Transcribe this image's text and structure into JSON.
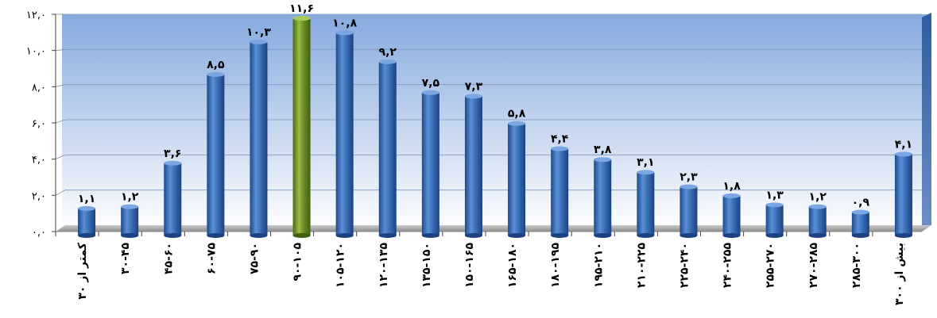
{
  "chart_data": {
    "type": "bar",
    "title": "",
    "xlabel": "",
    "ylabel": "",
    "ylim": [
      0,
      12
    ],
    "yticks": [
      0,
      2,
      4,
      6,
      8,
      10,
      12
    ],
    "ytick_labels": [
      "۰,۰",
      "۲,۰",
      "۴,۰",
      "۶,۰",
      "۸,۰",
      "۱۰,۰",
      "۱۲,۰"
    ],
    "grid": true,
    "legend": "none",
    "categories": [
      "کمتر از ۳۰",
      "۳۰-۴۵",
      "۴۵-۶۰",
      "۶۰-۷۵",
      "۷۵-۹۰",
      "۹۰-۱۰۵",
      "۱۰۵-۱۲۰",
      "۱۲۰-۱۳۵",
      "۱۳۵-۱۵۰",
      "۱۵۰-۱۶۵",
      "۱۶۵-۱۸۰",
      "۱۸۰-۱۹۵",
      "۱۹۵-۲۱۰",
      "۲۱۰-۲۲۵",
      "۲۲۵-۲۴۰",
      "۲۴۰-۲۵۵",
      "۲۵۵-۲۷۰",
      "۲۷۰-۲۸۵",
      "۲۸۵-۳۰۰",
      "بیش از ۳۰۰"
    ],
    "values": [
      1.1,
      1.2,
      3.6,
      8.5,
      10.3,
      11.6,
      10.8,
      9.2,
      7.5,
      7.3,
      5.8,
      4.4,
      3.8,
      3.1,
      2.3,
      1.8,
      1.3,
      1.2,
      0.9,
      4.1
    ],
    "value_labels": [
      "۱,۱",
      "۱,۲",
      "۳,۶",
      "۸,۵",
      "۱۰,۳",
      "۱۱,۶",
      "۱۰,۸",
      "۹,۲",
      "۷,۵",
      "۷,۳",
      "۵,۸",
      "۴,۴",
      "۳,۸",
      "۳,۱",
      "۲,۳",
      "۱,۸",
      "۱,۳",
      "۱,۲",
      "۰,۹",
      "۴,۱"
    ],
    "highlight_index": 5,
    "colors": {
      "bar": "#3a70b8",
      "bar_highlight": "#6e8f2a",
      "background_top": "#8fb0e2",
      "background_bottom": "#ffffff",
      "floor": "#a7a7a7"
    }
  }
}
